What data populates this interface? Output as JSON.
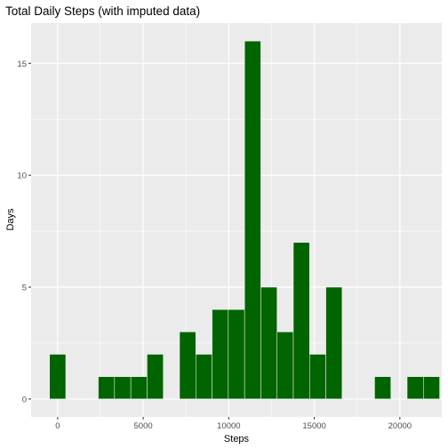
{
  "chart_data": {
    "type": "bar",
    "title": "Total Daily Steps (with imputed data)",
    "xlabel": "Steps",
    "ylabel": "Days",
    "binwidth": 950,
    "bin_starts": [
      -475,
      475,
      1425,
      2375,
      3325,
      4275,
      5225,
      6175,
      7125,
      8075,
      9025,
      9975,
      10925,
      11875,
      12825,
      13775,
      14725,
      15675,
      16625,
      17575,
      18525,
      19475,
      20425,
      21375
    ],
    "values": [
      2,
      0,
      0,
      1,
      1,
      1,
      2,
      0,
      3,
      2,
      4,
      4,
      16,
      5,
      3,
      7,
      2,
      5,
      0,
      0,
      1,
      0,
      1,
      1
    ],
    "xticks": [
      0,
      5000,
      10000,
      15000,
      20000
    ],
    "xtick_labels": [
      "0",
      "5000",
      "10000",
      "15000",
      "20000"
    ],
    "yticks": [
      0,
      5,
      10,
      15
    ],
    "ytick_labels": [
      "0",
      "5",
      "10",
      "15"
    ],
    "xlim": [
      -1550,
      22450
    ],
    "ylim": [
      -0.8,
      16.8
    ],
    "grid": true,
    "colors": {
      "fill": "#006400",
      "outline": "#ffffff",
      "panel": "#ebebeb",
      "grid": "#ffffff"
    }
  }
}
